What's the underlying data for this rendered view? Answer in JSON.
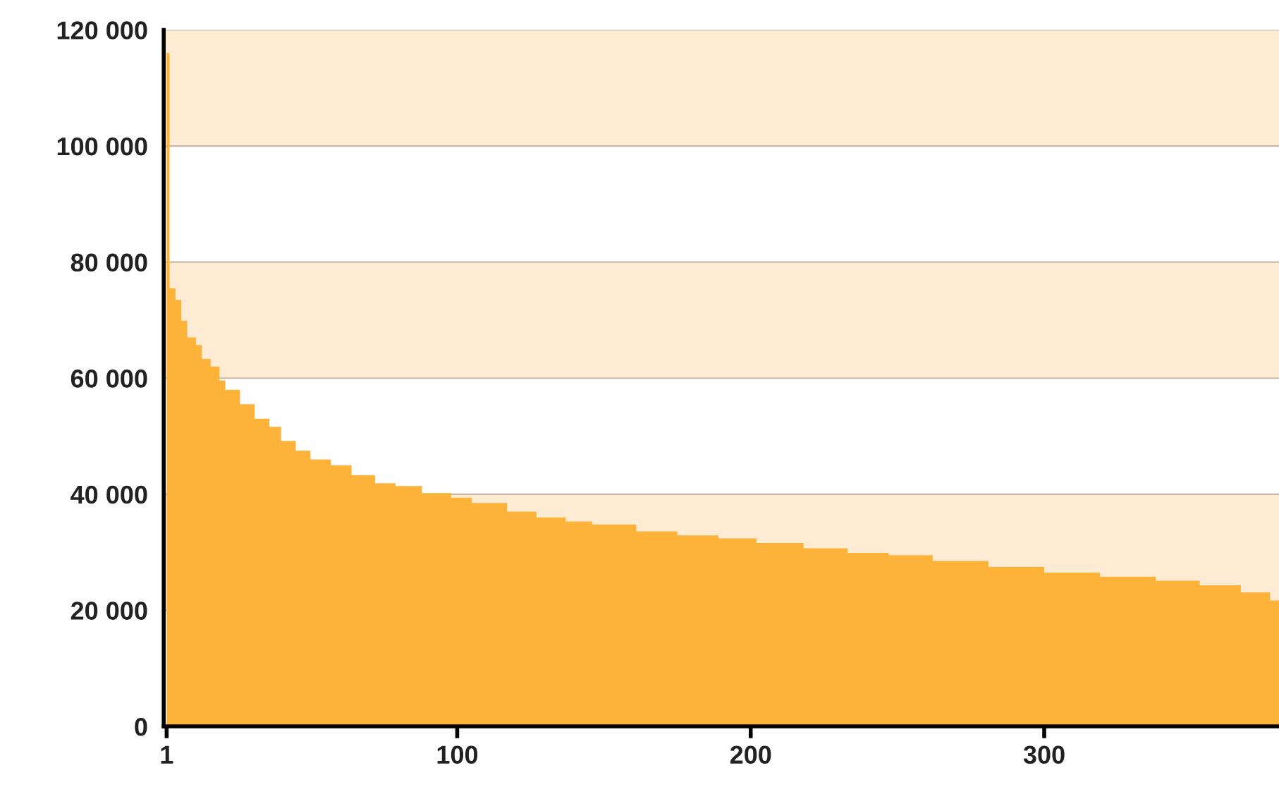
{
  "chart_data": {
    "type": "area",
    "color": "#fdb23a",
    "x": [
      1,
      2,
      4,
      6,
      8,
      11,
      13,
      16,
      19,
      21,
      26,
      31,
      36,
      40,
      45,
      50,
      57,
      64,
      72,
      79,
      88,
      98,
      105,
      117,
      127,
      137,
      146,
      161,
      175,
      189,
      202,
      218,
      233,
      247,
      262,
      281,
      300,
      319,
      338,
      353,
      367,
      377,
      380
    ],
    "values": [
      116000,
      75500,
      73500,
      69900,
      67000,
      65700,
      63300,
      62000,
      59600,
      58000,
      55500,
      53000,
      51600,
      49200,
      47500,
      46000,
      45000,
      43300,
      41900,
      41400,
      40200,
      39400,
      38500,
      37000,
      36000,
      35300,
      34800,
      33600,
      32900,
      32400,
      31600,
      30700,
      29900,
      29500,
      28500,
      27500,
      26500,
      25800,
      25100,
      24300,
      23100,
      21700,
      21700
    ],
    "xlim": [
      0,
      380
    ],
    "ylim": [
      0,
      120000
    ],
    "xticks": [
      1,
      100,
      200,
      300
    ],
    "yticks": [
      {
        "value": 0,
        "label": "0"
      },
      {
        "value": 20000,
        "label": "20 000"
      },
      {
        "value": 40000,
        "label": "40 000"
      },
      {
        "value": 60000,
        "label": "60 000"
      },
      {
        "value": 80000,
        "label": "80 000"
      },
      {
        "value": 100000,
        "label": "100 000"
      },
      {
        "value": 120000,
        "label": "120 000"
      }
    ],
    "grid": "y",
    "bands": [
      {
        "axis": "y",
        "from": 20000,
        "to": 40000,
        "color": "#fdebd3"
      },
      {
        "axis": "y",
        "from": 60000,
        "to": 80000,
        "color": "#fdebd3"
      },
      {
        "axis": "y",
        "from": 100000,
        "to": 120000,
        "color": "#fdebd3"
      }
    ]
  }
}
